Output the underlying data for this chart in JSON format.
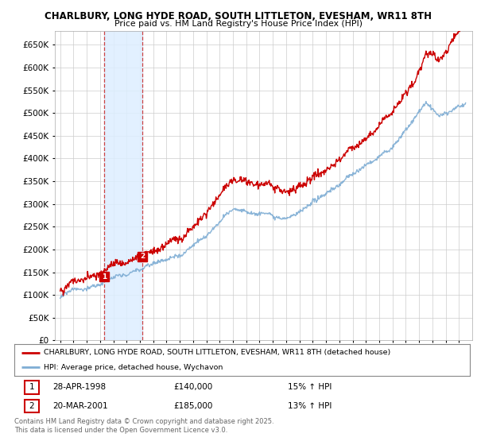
{
  "title1": "CHARLBURY, LONG HYDE ROAD, SOUTH LITTLETON, EVESHAM, WR11 8TH",
  "title2": "Price paid vs. HM Land Registry's House Price Index (HPI)",
  "background_color": "#ffffff",
  "plot_bg_color": "#ffffff",
  "grid_color": "#cccccc",
  "red_line_color": "#cc0000",
  "blue_line_color": "#7eadd4",
  "shade_color": "#ddeeff",
  "ylim": [
    0,
    680000
  ],
  "yticks": [
    0,
    50000,
    100000,
    150000,
    200000,
    250000,
    300000,
    350000,
    400000,
    450000,
    500000,
    550000,
    600000,
    650000
  ],
  "legend_label_red": "CHARLBURY, LONG HYDE ROAD, SOUTH LITTLETON, EVESHAM, WR11 8TH (detached house)",
  "legend_label_blue": "HPI: Average price, detached house, Wychavon",
  "purchase1_date": "28-APR-1998",
  "purchase1_price": "£140,000",
  "purchase1_hpi": "15% ↑ HPI",
  "purchase1_year": 1998.3,
  "purchase2_date": "20-MAR-2001",
  "purchase2_price": "£185,000",
  "purchase2_hpi": "13% ↑ HPI",
  "purchase2_year": 2001.2,
  "footer_text": "Contains HM Land Registry data © Crown copyright and database right 2025.\nThis data is licensed under the Open Government Licence v3.0."
}
